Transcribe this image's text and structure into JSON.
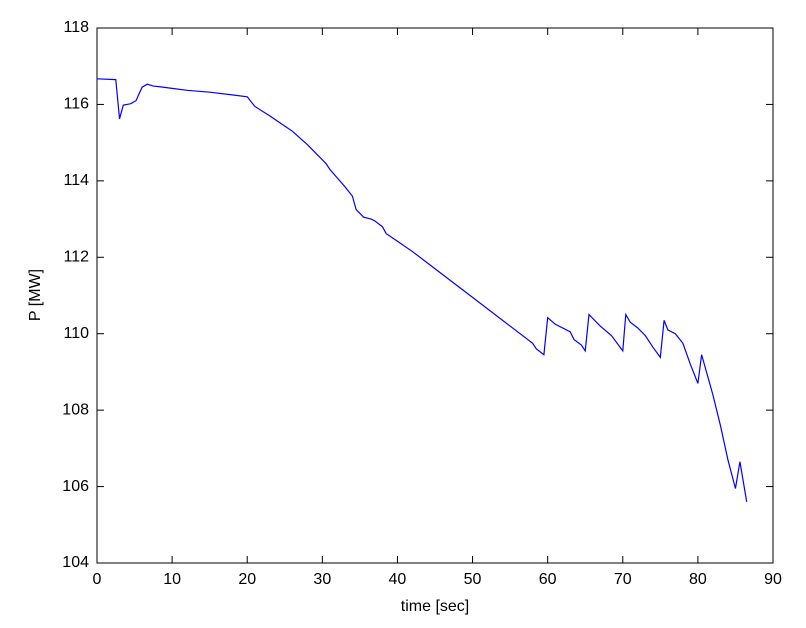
{
  "chart_data": {
    "type": "line",
    "xlabel": "time [sec]",
    "ylabel": "P [MW]",
    "x": [
      0,
      2.5,
      3,
      3.5,
      4.5,
      5.2,
      6,
      6.7,
      7.5,
      8.5,
      10,
      12,
      15,
      18,
      20,
      21,
      23,
      26,
      28,
      30,
      30.5,
      31,
      33,
      34,
      34.5,
      35.5,
      36.5,
      37,
      38,
      38.5,
      40,
      42,
      45,
      50,
      55,
      58,
      58.5,
      59.5,
      60,
      61,
      63,
      63.5,
      64.5,
      65,
      65.5,
      66.5,
      67,
      68.5,
      70,
      70.4,
      71,
      72,
      73,
      74,
      75,
      75.5,
      76,
      77,
      78,
      79,
      80,
      80.5,
      81,
      82,
      83,
      84,
      85,
      85.6,
      86.5
    ],
    "values": [
      116.67,
      116.65,
      115.62,
      115.98,
      116.02,
      116.1,
      116.45,
      116.53,
      116.48,
      116.46,
      116.42,
      116.37,
      116.32,
      116.25,
      116.2,
      115.95,
      115.7,
      115.3,
      114.95,
      114.55,
      114.45,
      114.3,
      113.85,
      113.6,
      113.25,
      113.05,
      113.0,
      112.95,
      112.8,
      112.62,
      112.42,
      112.15,
      111.7,
      110.95,
      110.2,
      109.75,
      109.6,
      109.45,
      110.42,
      110.25,
      110.05,
      109.85,
      109.7,
      109.55,
      110.5,
      110.3,
      110.2,
      109.95,
      109.55,
      110.5,
      110.3,
      110.15,
      109.95,
      109.65,
      109.38,
      110.35,
      110.1,
      110.0,
      109.75,
      109.2,
      108.7,
      109.45,
      109.1,
      108.4,
      107.6,
      106.7,
      105.95,
      106.65,
      105.6
    ],
    "color": "#0000ff",
    "xlim": [
      0,
      90
    ],
    "xticks": [
      0,
      10,
      20,
      30,
      40,
      50,
      60,
      70,
      80,
      90
    ],
    "ylim": [
      104,
      118
    ],
    "yticks": [
      104,
      106,
      108,
      110,
      112,
      114,
      116,
      118
    ]
  }
}
